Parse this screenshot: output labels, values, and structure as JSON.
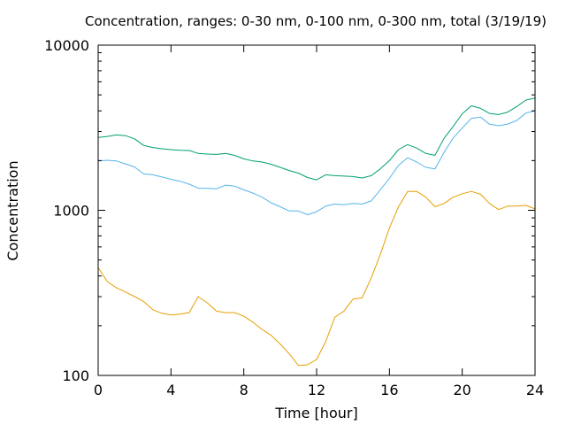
{
  "chart_data": {
    "type": "line",
    "title": "Concentration, ranges: 0-30 nm, 0-100 nm, 0-300 nm, total (3/19/19)",
    "xlabel": "Time [hour]",
    "ylabel": "Concentration",
    "xlim": [
      0,
      24
    ],
    "ylim": [
      100,
      10000
    ],
    "y_scale": "log",
    "x_ticks": [
      "0",
      "4",
      "8",
      "12",
      "16",
      "20",
      "24"
    ],
    "y_ticks": [
      "100",
      "1000",
      "10000"
    ],
    "grid": false,
    "legend": "none",
    "x": [
      0,
      0.5,
      1,
      1.5,
      2,
      2.5,
      3,
      3.5,
      4,
      4.5,
      5,
      5.5,
      6,
      6.5,
      7,
      7.5,
      8,
      8.5,
      9,
      9.5,
      10,
      10.5,
      11,
      11.5,
      12,
      12.5,
      13,
      13.5,
      14,
      14.5,
      15,
      15.5,
      16,
      16.5,
      17,
      17.5,
      18,
      18.5,
      19,
      19.5,
      20,
      20.5,
      21,
      21.5,
      22,
      22.5,
      23,
      23.5,
      24
    ],
    "series": [
      {
        "color": "#009e73",
        "values": [
          2760,
          2800,
          2860,
          2830,
          2710,
          2470,
          2400,
          2360,
          2330,
          2310,
          2300,
          2210,
          2190,
          2180,
          2210,
          2150,
          2050,
          1990,
          1960,
          1900,
          1820,
          1740,
          1680,
          1580,
          1530,
          1640,
          1620,
          1610,
          1600,
          1570,
          1620,
          1780,
          2000,
          2330,
          2500,
          2380,
          2210,
          2150,
          2730,
          3220,
          3840,
          4290,
          4140,
          3860,
          3800,
          3930,
          4250,
          4650,
          4780
        ]
      },
      {
        "color": "#56b4e9",
        "values": [
          1990,
          2010,
          1990,
          1910,
          1830,
          1660,
          1640,
          1590,
          1540,
          1500,
          1440,
          1360,
          1360,
          1350,
          1420,
          1400,
          1330,
          1270,
          1200,
          1110,
          1050,
          990,
          990,
          940,
          980,
          1060,
          1090,
          1080,
          1100,
          1090,
          1140,
          1330,
          1560,
          1870,
          2080,
          1960,
          1820,
          1780,
          2240,
          2740,
          3150,
          3600,
          3670,
          3320,
          3250,
          3330,
          3500,
          3880,
          4010
        ]
      },
      {
        "color": "#e69f00",
        "values": [
          450,
          370,
          340,
          320,
          300,
          280,
          250,
          238,
          232,
          235,
          240,
          300,
          275,
          245,
          240,
          240,
          228,
          210,
          190,
          175,
          155,
          135,
          115,
          116,
          125,
          160,
          225,
          245,
          290,
          295,
          390,
          540,
          780,
          1050,
          1300,
          1300,
          1200,
          1050,
          1100,
          1200,
          1260,
          1300,
          1250,
          1100,
          1010,
          1060,
          1060,
          1070,
          1020
        ]
      }
    ]
  }
}
